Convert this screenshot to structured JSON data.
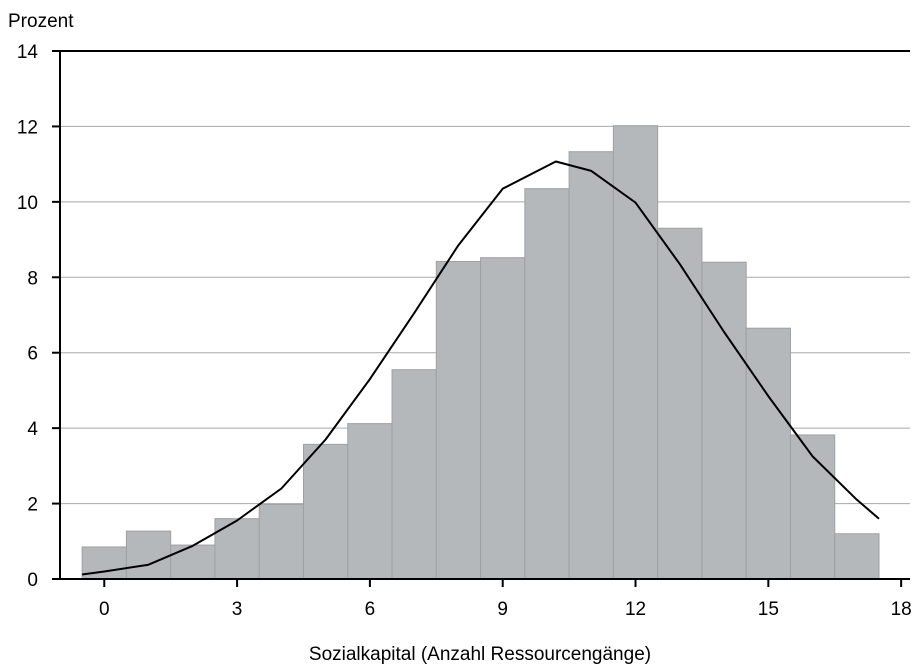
{
  "chart_data": {
    "type": "bar",
    "ylabel": "Prozent",
    "xlabel": "Sozialkapital (Anzahl Ressourcengänge)",
    "xlim": [
      -1,
      18.2
    ],
    "ylim": [
      0,
      14
    ],
    "xticks": [
      0,
      3,
      6,
      9,
      12,
      15,
      18
    ],
    "yticks": [
      0,
      2,
      4,
      6,
      8,
      10,
      12,
      14
    ],
    "grid": "horizontal",
    "bar_width": 1,
    "categories": [
      0,
      1,
      2,
      3,
      4,
      5,
      6,
      7,
      8,
      9,
      10,
      11,
      12,
      13,
      14,
      15,
      16,
      17
    ],
    "values": [
      0.85,
      1.27,
      0.9,
      1.6,
      1.98,
      3.57,
      4.12,
      5.55,
      8.42,
      8.52,
      10.35,
      11.33,
      12.02,
      9.3,
      8.4,
      6.65,
      3.82,
      1.2
    ],
    "bar_color": "#b5b8bb",
    "curve": {
      "type": "line",
      "color": "#000000",
      "x": [
        -0.5,
        0,
        1,
        2,
        3,
        4,
        5,
        6,
        7,
        8,
        9,
        10.2,
        11,
        12,
        13,
        14,
        15,
        16,
        17,
        17.5
      ],
      "y": [
        0.12,
        0.2,
        0.38,
        0.88,
        1.55,
        2.4,
        3.7,
        5.3,
        7.05,
        8.85,
        10.35,
        11.07,
        10.82,
        9.98,
        8.35,
        6.55,
        4.85,
        3.25,
        2.1,
        1.6
      ]
    }
  }
}
